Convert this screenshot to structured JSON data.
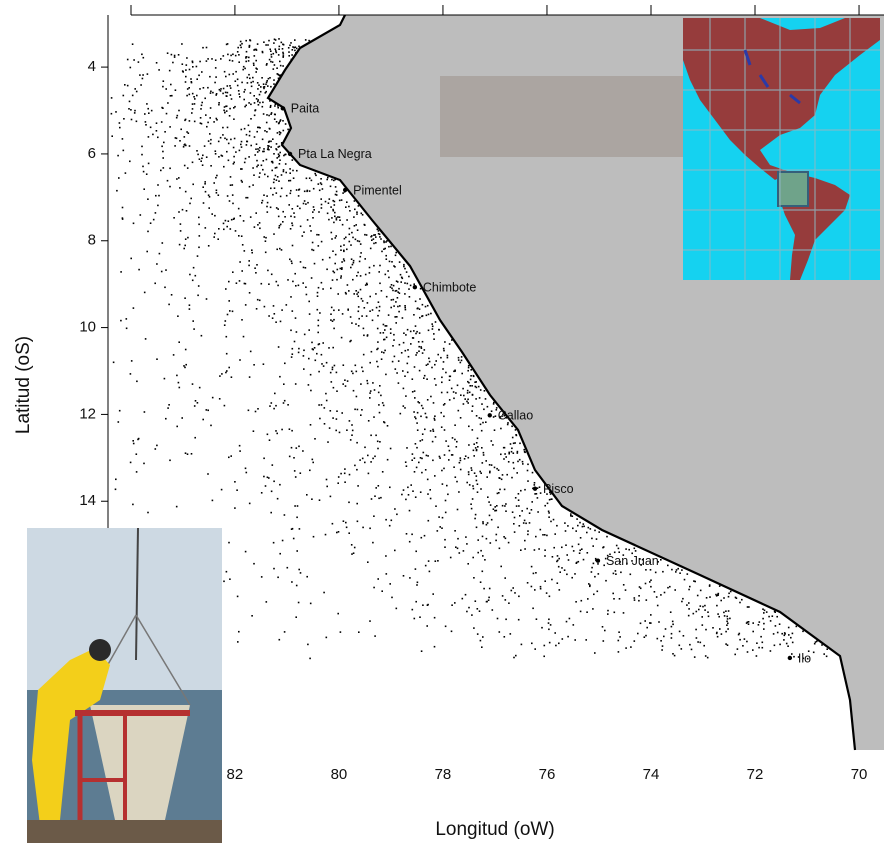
{
  "map": {
    "xlabel": "Longitud (oW)",
    "ylabel": "Latitud (oS)",
    "xlim": [
      84.44,
      69.52
    ],
    "ylim": [
      2.8,
      19.73
    ],
    "xticks": [
      82,
      80,
      78,
      76,
      74,
      72,
      70
    ],
    "yticks": [
      4,
      6,
      8,
      10,
      12,
      14
    ],
    "places": [
      {
        "name": "Paita",
        "lon": 81.08,
        "lat": 4.95
      },
      {
        "name": "Pta La Negra",
        "lon": 80.94,
        "lat": 6.0
      },
      {
        "name": "Pimentel",
        "lon": 79.88,
        "lat": 6.83
      },
      {
        "name": "Chimbote",
        "lon": 78.54,
        "lat": 9.07
      },
      {
        "name": "Callao",
        "lon": 77.1,
        "lat": 12.02
      },
      {
        "name": "Pisco",
        "lon": 76.23,
        "lat": 13.71
      },
      {
        "name": "San Juan",
        "lon": 75.02,
        "lat": 15.37
      },
      {
        "name": "Ilo",
        "lon": 71.33,
        "lat": 17.61
      }
    ]
  }
}
